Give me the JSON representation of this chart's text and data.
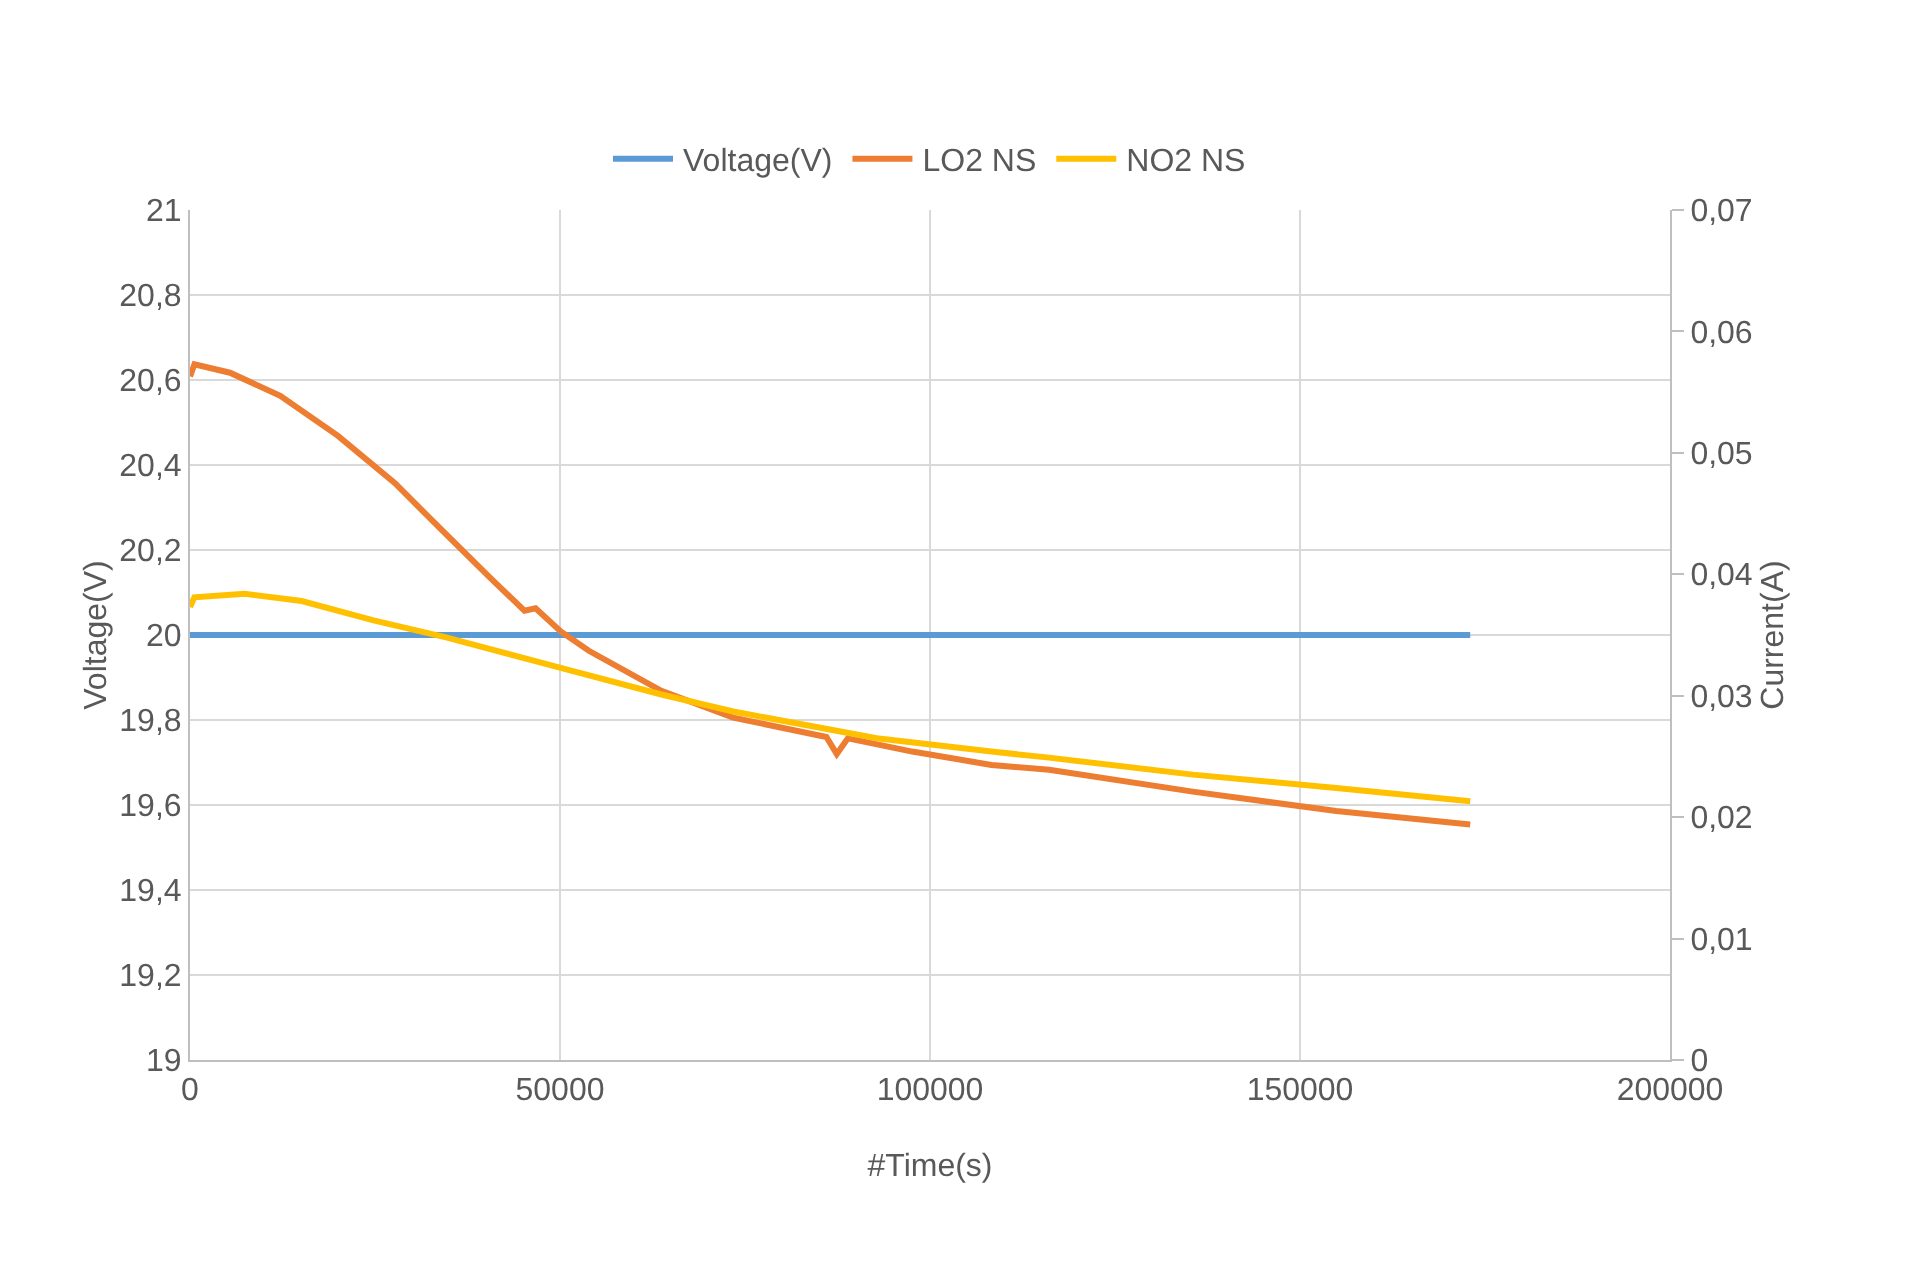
{
  "chart_data": {
    "type": "line",
    "xlabel": "#Time(s)",
    "ylabel": "Voltage(V)",
    "y2label": "Current(A)",
    "xlim": [
      0,
      200000
    ],
    "xticks": [
      0,
      50000,
      100000,
      150000,
      200000
    ],
    "ylim": [
      19,
      21
    ],
    "yticks": [
      19,
      {
        "value": 19.2,
        "label": "19,2"
      },
      {
        "value": 19.4,
        "label": "19,4"
      },
      {
        "value": 19.6,
        "label": "19,6"
      },
      {
        "value": 19.8,
        "label": "19,8"
      },
      20,
      {
        "value": 20.2,
        "label": "20,2"
      },
      {
        "value": 20.4,
        "label": "20,4"
      },
      {
        "value": 20.6,
        "label": "20,6"
      },
      {
        "value": 20.8,
        "label": "20,8"
      },
      21
    ],
    "y2lim": [
      0,
      0.07
    ],
    "y2ticks": [
      0,
      {
        "value": 0.01,
        "label": "0,01"
      },
      {
        "value": 0.02,
        "label": "0,02"
      },
      {
        "value": 0.03,
        "label": "0,03"
      },
      {
        "value": 0.04,
        "label": "0,04"
      },
      {
        "value": 0.05,
        "label": "0,05"
      },
      {
        "value": 0.06,
        "label": "0,06"
      },
      {
        "value": 0.07,
        "label": "0,07"
      }
    ],
    "grid": true,
    "legend": "top",
    "marker": "none",
    "line_style": "solid",
    "series": [
      {
        "name": "Voltage(V)",
        "color": "#5b9bd5",
        "x": [
          0,
          173000
        ],
        "values": [
          20.0,
          20.0
        ]
      },
      {
        "name": "LO2 NS",
        "color": "#ed7d31",
        "axis": "y2",
        "x": [
          0,
          600,
          5400,
          12200,
          20000,
          27700,
          33600,
          40400,
          45200,
          46700,
          50100,
          53900,
          63700,
          73400,
          86000,
          87400,
          88900,
          97600,
          108300,
          116100,
          135500,
          154900,
          173000
        ],
        "values": [
          0.0563,
          0.0573,
          0.0566,
          0.0547,
          0.0514,
          0.0475,
          0.0439,
          0.0398,
          0.037,
          0.0372,
          0.0353,
          0.0337,
          0.0304,
          0.0282,
          0.0266,
          0.0252,
          0.0265,
          0.0254,
          0.0243,
          0.0239,
          0.0221,
          0.0205,
          0.0194
        ]
      },
      {
        "name": "NO2 NS",
        "color": "#ffc000",
        "axis": "y2",
        "x": [
          0,
          600,
          7400,
          15100,
          24800,
          34600,
          50100,
          63700,
          73400,
          92800,
          108300,
          116100,
          135500,
          154900,
          173000
        ],
        "values": [
          0.0373,
          0.0381,
          0.0384,
          0.0378,
          0.0362,
          0.0348,
          0.0323,
          0.0301,
          0.0287,
          0.0265,
          0.0254,
          0.0249,
          0.0235,
          0.0224,
          0.0213
        ]
      }
    ]
  }
}
